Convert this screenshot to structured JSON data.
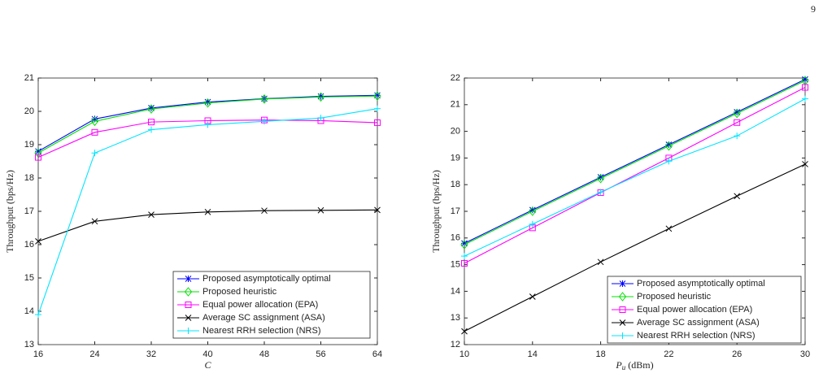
{
  "page_number": "9",
  "chart_data": [
    {
      "type": "line",
      "ylabel": "Throughput (bps/Hz)",
      "xlabel": {
        "symbol": "C"
      },
      "x": [
        16,
        24,
        32,
        40,
        48,
        56,
        64
      ],
      "xlim": [
        16,
        64
      ],
      "xticks": [
        16,
        24,
        32,
        40,
        48,
        56,
        64
      ],
      "ylim": [
        13,
        21
      ],
      "yticks": [
        13,
        14,
        15,
        16,
        17,
        18,
        19,
        20,
        21
      ],
      "grid": false,
      "legend": "lower right",
      "series": [
        {
          "name": "Proposed asymptotically optimal",
          "color": "#0000ff",
          "marker": "star",
          "values": [
            18.8,
            19.77,
            20.1,
            20.28,
            20.38,
            20.45,
            20.48
          ]
        },
        {
          "name": "Proposed heuristic",
          "color": "#00e000",
          "marker": "diamond",
          "values": [
            18.75,
            19.7,
            20.07,
            20.25,
            20.37,
            20.43,
            20.46
          ]
        },
        {
          "name": "Equal power allocation (EPA)",
          "color": "#ff00ff",
          "marker": "square",
          "values": [
            18.62,
            19.37,
            19.68,
            19.72,
            19.74,
            19.72,
            19.66
          ]
        },
        {
          "name": "Average SC assignment (ASA)",
          "color": "#000000",
          "marker": "x",
          "values": [
            16.1,
            16.7,
            16.9,
            16.98,
            17.02,
            17.03,
            17.04
          ]
        },
        {
          "name": "Nearest RRH selection (NRS)",
          "color": "#00e5ff",
          "marker": "plus",
          "values": [
            13.9,
            18.75,
            19.45,
            19.6,
            19.7,
            19.8,
            20.08
          ]
        }
      ]
    },
    {
      "type": "line",
      "ylabel": "Throughput (bps/Hz)",
      "xlabel": {
        "symbol": "P",
        "subscript": "u",
        "unit": "(dBm)"
      },
      "x": [
        10,
        14,
        18,
        22,
        26,
        30
      ],
      "xlim": [
        10,
        30
      ],
      "xticks": [
        10,
        14,
        18,
        22,
        26,
        30
      ],
      "ylim": [
        12,
        22
      ],
      "yticks": [
        12,
        13,
        14,
        15,
        16,
        17,
        18,
        19,
        20,
        21,
        22
      ],
      "grid": false,
      "legend": "lower right",
      "series": [
        {
          "name": "Proposed asymptotically optimal",
          "color": "#0000ff",
          "marker": "star",
          "values": [
            15.8,
            17.05,
            18.28,
            19.5,
            20.72,
            21.95
          ]
        },
        {
          "name": "Proposed heuristic",
          "color": "#00e000",
          "marker": "diamond",
          "values": [
            15.75,
            17.0,
            18.23,
            19.45,
            20.67,
            21.9
          ]
        },
        {
          "name": "Equal power allocation (EPA)",
          "color": "#ff00ff",
          "marker": "square",
          "values": [
            15.05,
            16.38,
            17.7,
            19.0,
            20.33,
            21.65
          ]
        },
        {
          "name": "Average SC assignment (ASA)",
          "color": "#000000",
          "marker": "x",
          "values": [
            12.5,
            13.8,
            15.1,
            16.35,
            17.57,
            18.77
          ]
        },
        {
          "name": "Nearest RRH selection (NRS)",
          "color": "#00e5ff",
          "marker": "plus",
          "values": [
            15.32,
            16.52,
            17.72,
            18.88,
            19.83,
            21.22
          ]
        }
      ]
    }
  ]
}
